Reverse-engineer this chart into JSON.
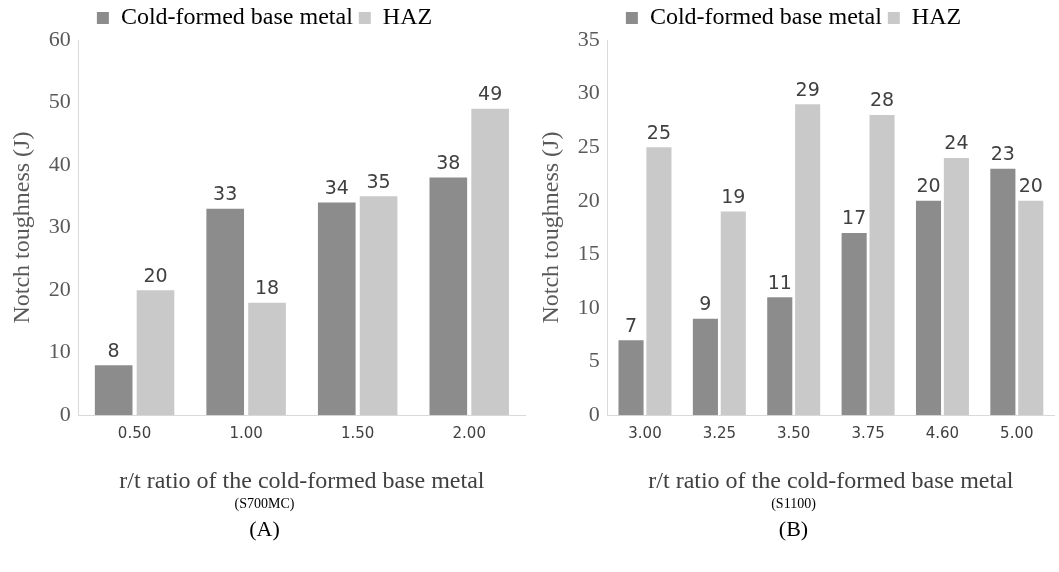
{
  "chart_data": [
    {
      "type": "bar",
      "categories": [
        "0.50",
        "1.00",
        "1.50",
        "2.00"
      ],
      "series": [
        {
          "name": "Cold-formed base metal",
          "color": "#8c8c8c",
          "values": [
            8,
            33,
            34,
            38
          ]
        },
        {
          "name": "HAZ",
          "color": "#c9c9c9",
          "values": [
            20,
            18,
            35,
            49
          ]
        }
      ],
      "ylim": [
        0,
        60
      ],
      "yticks": [
        0,
        10,
        20,
        30,
        40,
        50,
        60
      ],
      "ylabel": "Notch toughness (J)",
      "xlabel": "r/t ratio of the cold-formed base metal",
      "annotations": [
        "(S700MC)",
        "(A)"
      ],
      "legend": "top",
      "data_labels": true
    },
    {
      "type": "bar",
      "categories": [
        "3.00",
        "3.25",
        "3.50",
        "3.75",
        "4.60",
        "5.00"
      ],
      "series": [
        {
          "name": "Cold-formed base metal",
          "color": "#8c8c8c",
          "values": [
            7,
            9,
            11,
            17,
            20,
            23
          ]
        },
        {
          "name": "HAZ",
          "color": "#c9c9c9",
          "values": [
            25,
            19,
            29,
            28,
            24,
            20
          ]
        }
      ],
      "ylim": [
        0,
        35
      ],
      "yticks": [
        0,
        5,
        10,
        15,
        20,
        25,
        30,
        35
      ],
      "ylabel": "Notch toughness (J)",
      "xlabel": "r/t ratio of the cold-formed base metal",
      "annotations": [
        "(S1100)",
        "(B)"
      ],
      "legend": "top",
      "data_labels": true
    }
  ]
}
